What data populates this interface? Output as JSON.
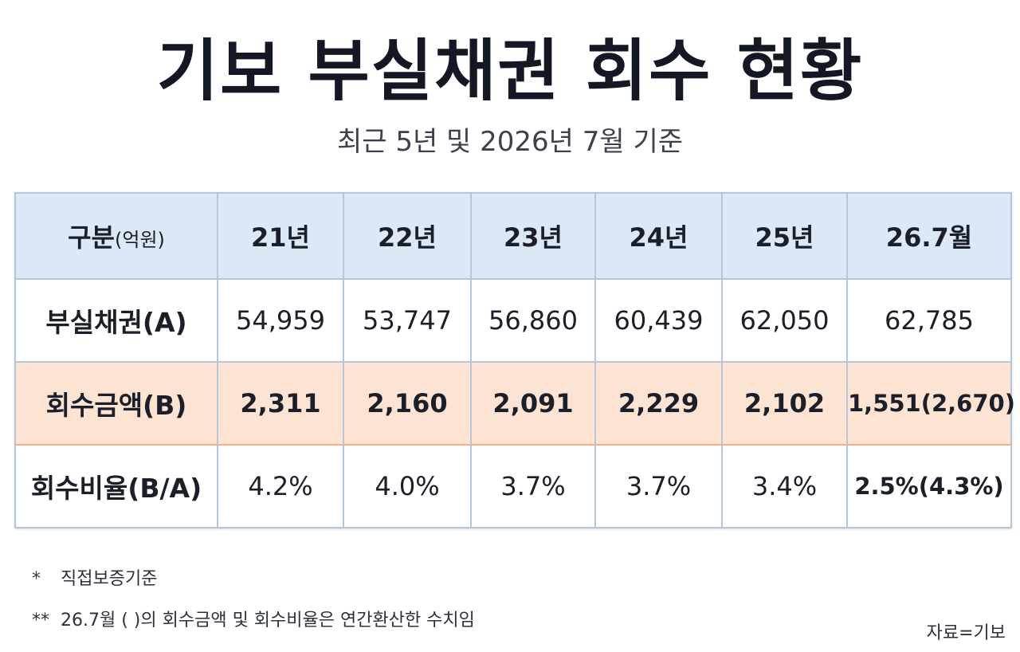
{
  "title": "기보 부실채권 회수 현황",
  "subtitle": "최근 5년 및 2026년 7월 기준",
  "table": {
    "header": {
      "label": "구분",
      "unit": "(억원)",
      "columns": [
        "21년",
        "22년",
        "23년",
        "24년",
        "25년",
        "26.7월"
      ]
    },
    "rows": [
      {
        "label": "부실채권(A)",
        "cells": [
          "54,959",
          "53,747",
          "56,860",
          "60,439",
          "62,050",
          "62,785"
        ]
      },
      {
        "label": "회수금액(B)",
        "cells": [
          "2,311",
          "2,160",
          "2,091",
          "2,229",
          "2,102",
          "1,551(2,670)"
        ]
      },
      {
        "label": "회수비율(B/A)",
        "cells": [
          "4.2%",
          "4.0%",
          "3.7%",
          "3.7%",
          "3.4%",
          "2.5%(4.3%)"
        ]
      }
    ]
  },
  "notes": [
    {
      "mark": "*",
      "text": "직접보증기준"
    },
    {
      "mark": "**",
      "text": "26.7월 ( )의 회수금액 및 회수비율은 연간환산한 수치임"
    }
  ],
  "source": "자료=기보"
}
